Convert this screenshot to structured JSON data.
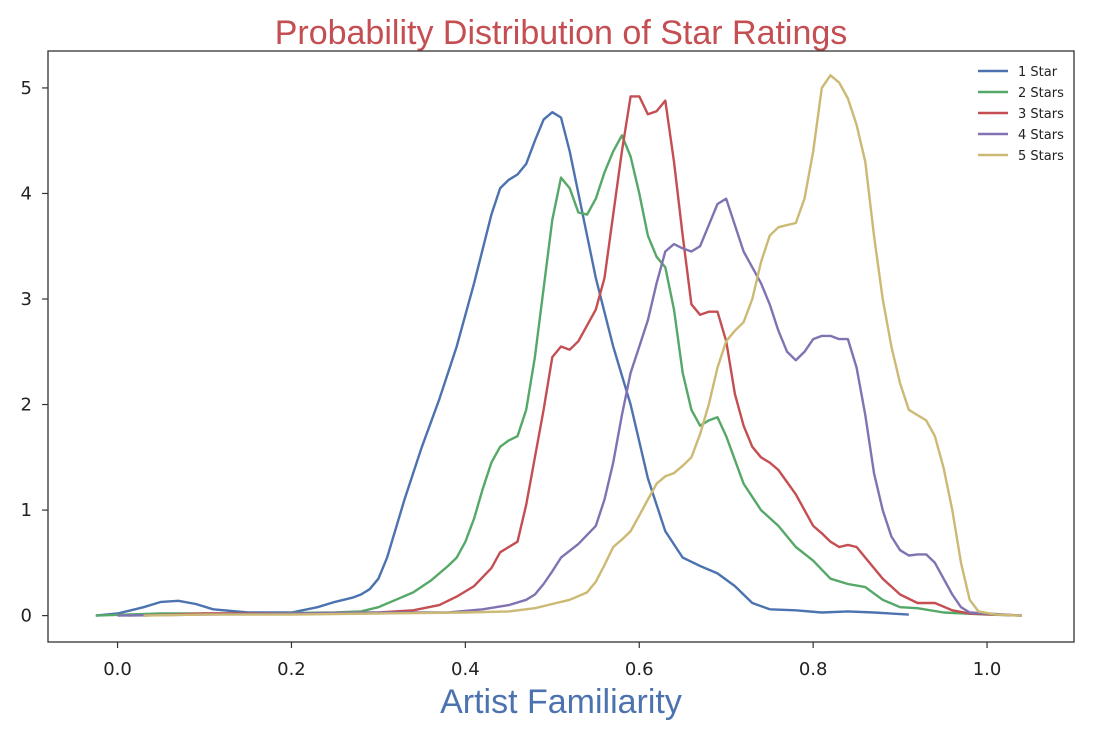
{
  "chart_data": {
    "type": "line",
    "title": "Probability Distribution of Star Ratings",
    "xlabel": "Artist Familiarity",
    "ylabel": "",
    "xlim": [
      -0.08,
      1.1
    ],
    "ylim": [
      -0.25,
      5.35
    ],
    "xticks": [
      "0.0",
      "0.2",
      "0.4",
      "0.6",
      "0.8",
      "1.0"
    ],
    "yticks": [
      "0",
      "1",
      "2",
      "3",
      "4",
      "5"
    ],
    "legend_position": "top-right",
    "grid": false,
    "colors": {
      "title": "#c44e52",
      "xlabel": "#4c72b0"
    },
    "series": [
      {
        "name": "1 Star",
        "color": "#4c72b0",
        "points": [
          [
            -0.025,
            0.0
          ],
          [
            0.0,
            0.02
          ],
          [
            0.03,
            0.08
          ],
          [
            0.05,
            0.13
          ],
          [
            0.07,
            0.14
          ],
          [
            0.09,
            0.11
          ],
          [
            0.11,
            0.06
          ],
          [
            0.15,
            0.03
          ],
          [
            0.2,
            0.03
          ],
          [
            0.23,
            0.08
          ],
          [
            0.25,
            0.13
          ],
          [
            0.27,
            0.17
          ],
          [
            0.28,
            0.2
          ],
          [
            0.29,
            0.25
          ],
          [
            0.3,
            0.35
          ],
          [
            0.31,
            0.55
          ],
          [
            0.33,
            1.1
          ],
          [
            0.35,
            1.6
          ],
          [
            0.37,
            2.05
          ],
          [
            0.39,
            2.55
          ],
          [
            0.41,
            3.15
          ],
          [
            0.43,
            3.8
          ],
          [
            0.44,
            4.05
          ],
          [
            0.45,
            4.13
          ],
          [
            0.46,
            4.18
          ],
          [
            0.47,
            4.28
          ],
          [
            0.48,
            4.5
          ],
          [
            0.49,
            4.7
          ],
          [
            0.5,
            4.77
          ],
          [
            0.51,
            4.72
          ],
          [
            0.52,
            4.4
          ],
          [
            0.53,
            4.0
          ],
          [
            0.55,
            3.2
          ],
          [
            0.57,
            2.55
          ],
          [
            0.59,
            2.0
          ],
          [
            0.61,
            1.3
          ],
          [
            0.63,
            0.8
          ],
          [
            0.65,
            0.55
          ],
          [
            0.67,
            0.47
          ],
          [
            0.69,
            0.4
          ],
          [
            0.71,
            0.28
          ],
          [
            0.73,
            0.12
          ],
          [
            0.75,
            0.06
          ],
          [
            0.78,
            0.05
          ],
          [
            0.81,
            0.03
          ],
          [
            0.84,
            0.04
          ],
          [
            0.87,
            0.03
          ],
          [
            0.91,
            0.01
          ]
        ]
      },
      {
        "name": "2 Stars",
        "color": "#55a868",
        "points": [
          [
            -0.025,
            0.0
          ],
          [
            0.05,
            0.02
          ],
          [
            0.15,
            0.02
          ],
          [
            0.25,
            0.03
          ],
          [
            0.28,
            0.04
          ],
          [
            0.3,
            0.08
          ],
          [
            0.32,
            0.15
          ],
          [
            0.34,
            0.22
          ],
          [
            0.36,
            0.33
          ],
          [
            0.38,
            0.47
          ],
          [
            0.39,
            0.55
          ],
          [
            0.4,
            0.7
          ],
          [
            0.41,
            0.92
          ],
          [
            0.42,
            1.2
          ],
          [
            0.43,
            1.45
          ],
          [
            0.44,
            1.6
          ],
          [
            0.45,
            1.66
          ],
          [
            0.46,
            1.7
          ],
          [
            0.47,
            1.95
          ],
          [
            0.48,
            2.45
          ],
          [
            0.49,
            3.1
          ],
          [
            0.5,
            3.75
          ],
          [
            0.51,
            4.15
          ],
          [
            0.52,
            4.05
          ],
          [
            0.53,
            3.82
          ],
          [
            0.54,
            3.8
          ],
          [
            0.55,
            3.95
          ],
          [
            0.56,
            4.2
          ],
          [
            0.57,
            4.4
          ],
          [
            0.58,
            4.55
          ],
          [
            0.59,
            4.35
          ],
          [
            0.6,
            4.0
          ],
          [
            0.61,
            3.6
          ],
          [
            0.62,
            3.4
          ],
          [
            0.63,
            3.3
          ],
          [
            0.64,
            2.9
          ],
          [
            0.65,
            2.3
          ],
          [
            0.66,
            1.95
          ],
          [
            0.67,
            1.8
          ],
          [
            0.68,
            1.85
          ],
          [
            0.69,
            1.88
          ],
          [
            0.7,
            1.7
          ],
          [
            0.72,
            1.25
          ],
          [
            0.74,
            1.0
          ],
          [
            0.76,
            0.85
          ],
          [
            0.78,
            0.65
          ],
          [
            0.8,
            0.52
          ],
          [
            0.82,
            0.35
          ],
          [
            0.84,
            0.3
          ],
          [
            0.86,
            0.27
          ],
          [
            0.88,
            0.15
          ],
          [
            0.9,
            0.08
          ],
          [
            0.92,
            0.07
          ],
          [
            0.95,
            0.03
          ],
          [
            1.0,
            0.01
          ],
          [
            1.04,
            0.0
          ]
        ]
      },
      {
        "name": "3 Stars",
        "color": "#c44e52",
        "points": [
          [
            0.03,
            0.0
          ],
          [
            0.1,
            0.02
          ],
          [
            0.2,
            0.02
          ],
          [
            0.3,
            0.03
          ],
          [
            0.34,
            0.05
          ],
          [
            0.37,
            0.1
          ],
          [
            0.39,
            0.18
          ],
          [
            0.41,
            0.28
          ],
          [
            0.43,
            0.45
          ],
          [
            0.44,
            0.6
          ],
          [
            0.45,
            0.65
          ],
          [
            0.46,
            0.7
          ],
          [
            0.47,
            1.05
          ],
          [
            0.48,
            1.5
          ],
          [
            0.49,
            1.95
          ],
          [
            0.5,
            2.45
          ],
          [
            0.51,
            2.55
          ],
          [
            0.52,
            2.52
          ],
          [
            0.53,
            2.6
          ],
          [
            0.55,
            2.9
          ],
          [
            0.56,
            3.2
          ],
          [
            0.57,
            3.8
          ],
          [
            0.58,
            4.4
          ],
          [
            0.59,
            4.92
          ],
          [
            0.6,
            4.92
          ],
          [
            0.61,
            4.75
          ],
          [
            0.62,
            4.78
          ],
          [
            0.63,
            4.88
          ],
          [
            0.64,
            4.3
          ],
          [
            0.65,
            3.6
          ],
          [
            0.66,
            2.95
          ],
          [
            0.67,
            2.85
          ],
          [
            0.68,
            2.88
          ],
          [
            0.69,
            2.88
          ],
          [
            0.7,
            2.6
          ],
          [
            0.71,
            2.1
          ],
          [
            0.72,
            1.8
          ],
          [
            0.73,
            1.6
          ],
          [
            0.74,
            1.5
          ],
          [
            0.75,
            1.45
          ],
          [
            0.76,
            1.38
          ],
          [
            0.78,
            1.15
          ],
          [
            0.8,
            0.85
          ],
          [
            0.81,
            0.78
          ],
          [
            0.82,
            0.7
          ],
          [
            0.83,
            0.65
          ],
          [
            0.84,
            0.67
          ],
          [
            0.85,
            0.65
          ],
          [
            0.86,
            0.55
          ],
          [
            0.88,
            0.35
          ],
          [
            0.9,
            0.2
          ],
          [
            0.92,
            0.12
          ],
          [
            0.94,
            0.12
          ],
          [
            0.96,
            0.05
          ],
          [
            0.98,
            0.02
          ],
          [
            1.04,
            0.0
          ]
        ]
      },
      {
        "name": "4 Stars",
        "color": "#8172b2",
        "points": [
          [
            0.0,
            0.0
          ],
          [
            0.1,
            0.01
          ],
          [
            0.2,
            0.02
          ],
          [
            0.3,
            0.03
          ],
          [
            0.38,
            0.03
          ],
          [
            0.42,
            0.06
          ],
          [
            0.45,
            0.1
          ],
          [
            0.47,
            0.15
          ],
          [
            0.48,
            0.2
          ],
          [
            0.49,
            0.3
          ],
          [
            0.5,
            0.42
          ],
          [
            0.51,
            0.55
          ],
          [
            0.53,
            0.68
          ],
          [
            0.55,
            0.85
          ],
          [
            0.56,
            1.1
          ],
          [
            0.57,
            1.45
          ],
          [
            0.58,
            1.9
          ],
          [
            0.59,
            2.3
          ],
          [
            0.6,
            2.55
          ],
          [
            0.61,
            2.8
          ],
          [
            0.62,
            3.15
          ],
          [
            0.63,
            3.45
          ],
          [
            0.64,
            3.52
          ],
          [
            0.65,
            3.48
          ],
          [
            0.66,
            3.45
          ],
          [
            0.67,
            3.5
          ],
          [
            0.68,
            3.7
          ],
          [
            0.69,
            3.9
          ],
          [
            0.7,
            3.95
          ],
          [
            0.71,
            3.7
          ],
          [
            0.72,
            3.45
          ],
          [
            0.73,
            3.3
          ],
          [
            0.74,
            3.15
          ],
          [
            0.75,
            2.95
          ],
          [
            0.76,
            2.7
          ],
          [
            0.77,
            2.5
          ],
          [
            0.78,
            2.42
          ],
          [
            0.79,
            2.5
          ],
          [
            0.8,
            2.62
          ],
          [
            0.81,
            2.65
          ],
          [
            0.82,
            2.65
          ],
          [
            0.83,
            2.62
          ],
          [
            0.84,
            2.62
          ],
          [
            0.85,
            2.35
          ],
          [
            0.86,
            1.9
          ],
          [
            0.87,
            1.35
          ],
          [
            0.88,
            1.0
          ],
          [
            0.89,
            0.75
          ],
          [
            0.9,
            0.62
          ],
          [
            0.91,
            0.57
          ],
          [
            0.92,
            0.58
          ],
          [
            0.93,
            0.58
          ],
          [
            0.94,
            0.5
          ],
          [
            0.95,
            0.35
          ],
          [
            0.96,
            0.2
          ],
          [
            0.97,
            0.08
          ],
          [
            0.98,
            0.03
          ],
          [
            1.04,
            0.0
          ]
        ]
      },
      {
        "name": "5 Stars",
        "color": "#ccb974",
        "points": [
          [
            0.03,
            0.0
          ],
          [
            0.1,
            0.01
          ],
          [
            0.2,
            0.01
          ],
          [
            0.3,
            0.02
          ],
          [
            0.4,
            0.03
          ],
          [
            0.45,
            0.04
          ],
          [
            0.48,
            0.07
          ],
          [
            0.5,
            0.11
          ],
          [
            0.52,
            0.15
          ],
          [
            0.54,
            0.22
          ],
          [
            0.55,
            0.32
          ],
          [
            0.56,
            0.48
          ],
          [
            0.57,
            0.65
          ],
          [
            0.58,
            0.72
          ],
          [
            0.59,
            0.8
          ],
          [
            0.6,
            0.95
          ],
          [
            0.61,
            1.1
          ],
          [
            0.62,
            1.25
          ],
          [
            0.63,
            1.32
          ],
          [
            0.64,
            1.35
          ],
          [
            0.65,
            1.42
          ],
          [
            0.66,
            1.5
          ],
          [
            0.67,
            1.72
          ],
          [
            0.68,
            2.0
          ],
          [
            0.69,
            2.35
          ],
          [
            0.7,
            2.6
          ],
          [
            0.71,
            2.7
          ],
          [
            0.72,
            2.78
          ],
          [
            0.73,
            3.0
          ],
          [
            0.74,
            3.35
          ],
          [
            0.75,
            3.6
          ],
          [
            0.76,
            3.68
          ],
          [
            0.77,
            3.7
          ],
          [
            0.78,
            3.72
          ],
          [
            0.79,
            3.95
          ],
          [
            0.8,
            4.4
          ],
          [
            0.81,
            5.0
          ],
          [
            0.82,
            5.12
          ],
          [
            0.83,
            5.05
          ],
          [
            0.84,
            4.9
          ],
          [
            0.85,
            4.65
          ],
          [
            0.86,
            4.3
          ],
          [
            0.87,
            3.6
          ],
          [
            0.88,
            3.0
          ],
          [
            0.89,
            2.55
          ],
          [
            0.9,
            2.2
          ],
          [
            0.91,
            1.95
          ],
          [
            0.92,
            1.9
          ],
          [
            0.93,
            1.85
          ],
          [
            0.94,
            1.7
          ],
          [
            0.95,
            1.4
          ],
          [
            0.96,
            1.0
          ],
          [
            0.97,
            0.5
          ],
          [
            0.98,
            0.15
          ],
          [
            0.99,
            0.04
          ],
          [
            1.01,
            0.01
          ],
          [
            1.04,
            0.0
          ]
        ]
      }
    ]
  }
}
